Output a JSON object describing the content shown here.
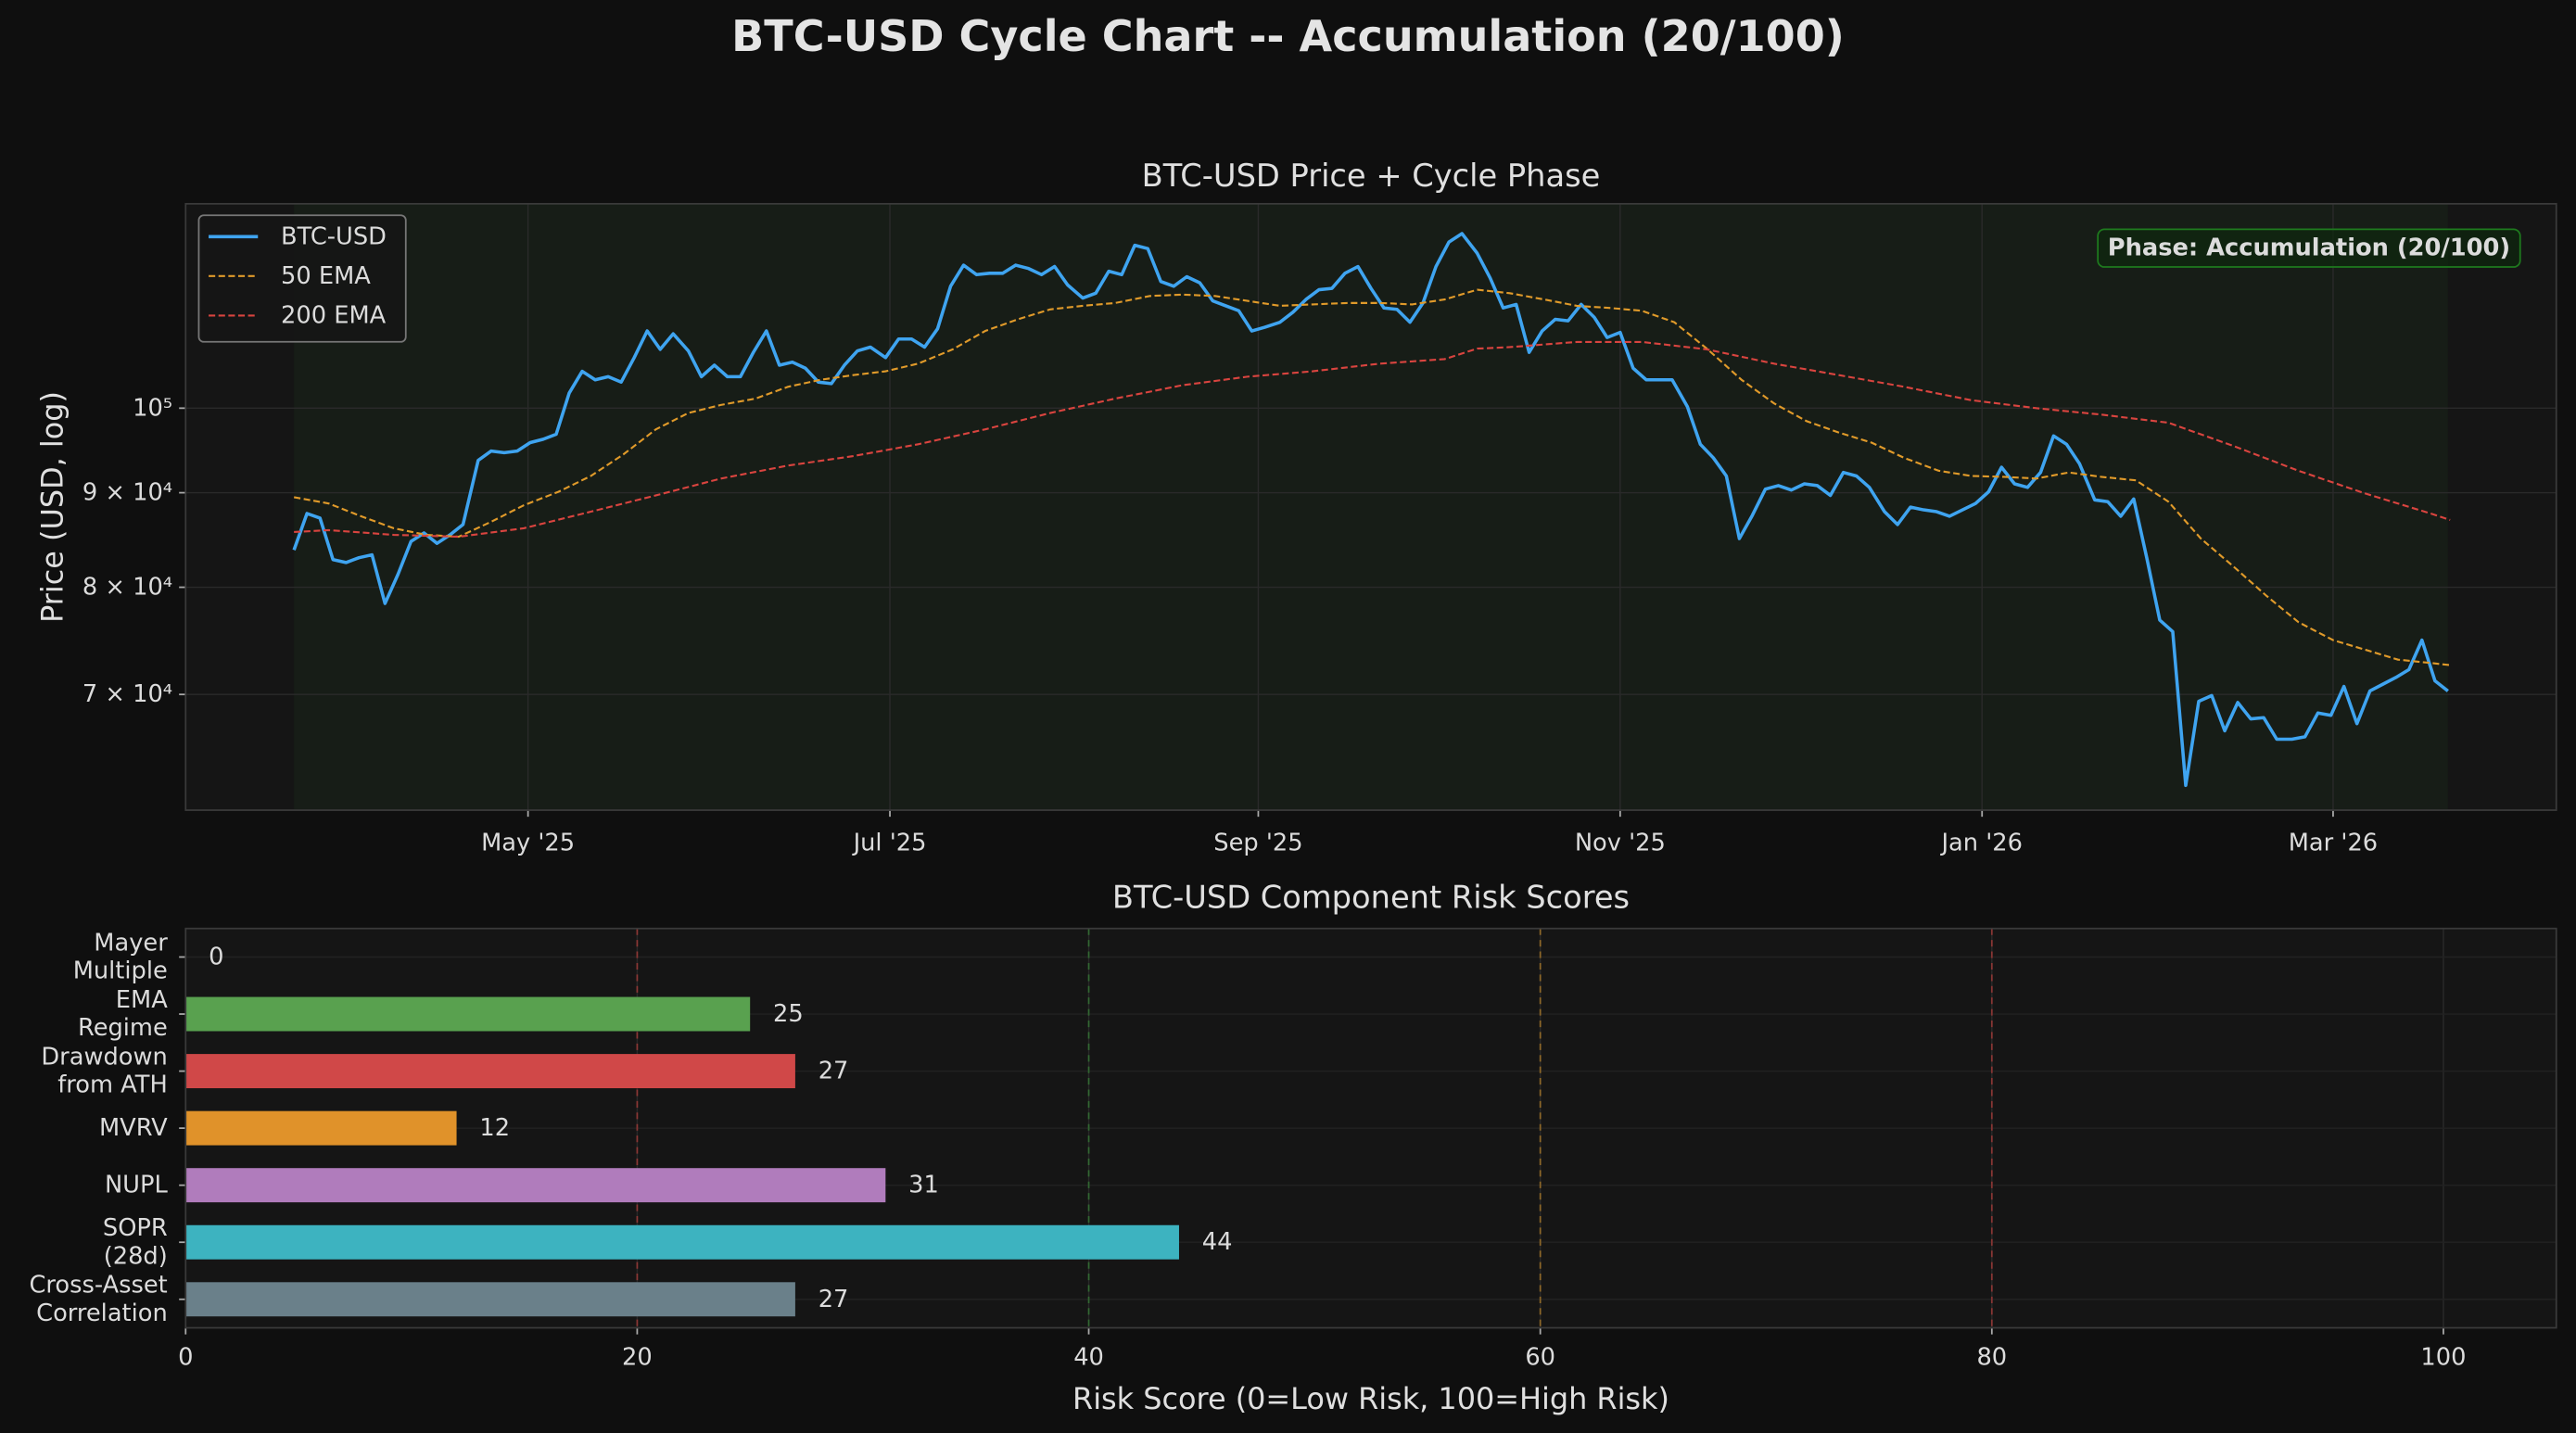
{
  "title": "BTC-USD Cycle Chart -- Accumulation (20/100)",
  "chart_data": [
    {
      "type": "line",
      "title": "BTC-USD Price + Cycle Phase",
      "ylabel": "Price (USD, log)",
      "log_y": true,
      "grid": true,
      "legend": "upper left",
      "phase_color": "#2e7d32",
      "annotation": {
        "text": "Phase: Accumulation (20/100)",
        "color": "#1e7a1e"
      },
      "xlim": [
        2025.171,
        2026.265
      ],
      "xticks": [
        {
          "value": 2025.329,
          "label": "May '25"
        },
        {
          "value": 2025.496,
          "label": "Jul '25"
        },
        {
          "value": 2025.666,
          "label": "Sep '25"
        },
        {
          "value": 2025.833,
          "label": "Nov '25"
        },
        {
          "value": 2026.0,
          "label": "Jan '26"
        },
        {
          "value": 2026.162,
          "label": "Mar '26"
        }
      ],
      "ylim": [
        60600,
        129000
      ],
      "yticks": [
        {
          "value": 70000,
          "label": "7 × 10⁴"
        },
        {
          "value": 80000,
          "label": "8 × 10⁴"
        },
        {
          "value": 90000,
          "label": "9 × 10⁴"
        },
        {
          "value": 100000,
          "label": "10⁵"
        }
      ],
      "series": [
        {
          "name": "BTC-USD",
          "color": "#3fa4f0",
          "linestyle": "solid",
          "x": [
            2025.221,
            2025.227,
            2025.233,
            2025.239,
            2025.245,
            2025.251,
            2025.257,
            2025.263,
            2025.269,
            2025.275,
            2025.281,
            2025.287,
            2025.293,
            2025.299,
            2025.306,
            2025.312,
            2025.318,
            2025.324,
            2025.33,
            2025.336,
            2025.342,
            2025.348,
            2025.354,
            2025.36,
            2025.366,
            2025.372,
            2025.378,
            2025.384,
            2025.39,
            2025.396,
            2025.403,
            2025.409,
            2025.415,
            2025.421,
            2025.427,
            2025.433,
            2025.439,
            2025.445,
            2025.451,
            2025.457,
            2025.463,
            2025.469,
            2025.475,
            2025.481,
            2025.487,
            2025.494,
            2025.5,
            2025.506,
            2025.512,
            2025.518,
            2025.524,
            2025.53,
            2025.536,
            2025.542,
            2025.548,
            2025.554,
            2025.56,
            2025.566,
            2025.572,
            2025.578,
            2025.585,
            2025.591,
            2025.597,
            2025.603,
            2025.609,
            2025.615,
            2025.621,
            2025.627,
            2025.633,
            2025.639,
            2025.645,
            2025.651,
            2025.657,
            2025.663,
            2025.669,
            2025.676,
            2025.682,
            2025.688,
            2025.694,
            2025.7,
            2025.706,
            2025.712,
            2025.718,
            2025.724,
            2025.73,
            2025.736,
            2025.742,
            2025.748,
            2025.754,
            2025.76,
            2025.767,
            2025.773,
            2025.779,
            2025.785,
            2025.791,
            2025.797,
            2025.803,
            2025.809,
            2025.815,
            2025.821,
            2025.827,
            2025.833,
            2025.839,
            2025.845,
            2025.851,
            2025.857,
            2025.864,
            2025.87,
            2025.876,
            2025.882,
            2025.888,
            2025.894,
            2025.9,
            2025.906,
            2025.912,
            2025.918,
            2025.924,
            2025.93,
            2025.936,
            2025.942,
            2025.948,
            2025.955,
            2025.961,
            2025.967,
            2025.973,
            2025.979,
            2025.985,
            2025.991,
            2025.997,
            2026.003,
            2026.009,
            2026.015,
            2026.021,
            2026.027,
            2026.033,
            2026.039,
            2026.045,
            2026.052,
            2026.058,
            2026.064,
            2026.07,
            2026.076,
            2026.082,
            2026.088,
            2026.094,
            2026.1,
            2026.106,
            2026.112,
            2026.118,
            2026.124,
            2026.13,
            2026.136,
            2026.143,
            2026.149,
            2026.155,
            2026.161,
            2026.167,
            2026.173,
            2026.179,
            2026.185,
            2026.191,
            2026.197,
            2026.203,
            2026.209,
            2026.215
          ],
          "values": [
            83800,
            87700,
            87200,
            82800,
            82500,
            83000,
            83300,
            78400,
            81300,
            84700,
            85600,
            84500,
            85400,
            86500,
            93700,
            94800,
            94600,
            94800,
            95800,
            96200,
            96800,
            101900,
            104700,
            103600,
            104000,
            103300,
            106500,
            110100,
            107600,
            109700,
            107400,
            104000,
            105500,
            104000,
            104000,
            107200,
            110100,
            105500,
            105900,
            105100,
            103300,
            103100,
            105500,
            107400,
            107900,
            106500,
            109000,
            109000,
            107900,
            110400,
            116400,
            119500,
            118100,
            118300,
            118300,
            119500,
            119000,
            118100,
            119300,
            116600,
            114700,
            115400,
            118600,
            118100,
            122500,
            122000,
            117100,
            116400,
            117800,
            116900,
            114300,
            113600,
            112900,
            110100,
            110600,
            111300,
            112700,
            114500,
            115900,
            116100,
            118300,
            119300,
            116100,
            113300,
            113100,
            111300,
            114000,
            119300,
            123000,
            124300,
            121300,
            117600,
            113300,
            113800,
            107200,
            110100,
            111700,
            111500,
            113800,
            112000,
            109200,
            109900,
            105100,
            103600,
            103600,
            103600,
            100200,
            95600,
            94000,
            91900,
            85000,
            87500,
            90400,
            90800,
            90300,
            91000,
            90800,
            89700,
            92300,
            91900,
            90600,
            87900,
            86500,
            88400,
            88100,
            87900,
            87400,
            88100,
            88800,
            90100,
            92900,
            91000,
            90600,
            92300,
            96600,
            95600,
            93300,
            89200,
            89000,
            87400,
            89300,
            83000,
            76800,
            75700,
            62500,
            69400,
            69900,
            66900,
            69300,
            67900,
            68000,
            66200,
            66200,
            66400,
            68400,
            68200,
            70700,
            67500,
            70300,
            70900,
            71500,
            72200,
            74900,
            71200,
            70300
          ]
        },
        {
          "name": "50 EMA",
          "color": "#e09a2a",
          "linestyle": "dashed",
          "x": [
            2025.221,
            2025.237,
            2025.252,
            2025.267,
            2025.282,
            2025.297,
            2025.312,
            2025.327,
            2025.343,
            2025.358,
            2025.373,
            2025.388,
            2025.403,
            2025.418,
            2025.434,
            2025.449,
            2025.464,
            2025.479,
            2025.494,
            2025.509,
            2025.525,
            2025.54,
            2025.555,
            2025.57,
            2025.585,
            2025.6,
            2025.616,
            2025.631,
            2025.646,
            2025.661,
            2025.676,
            2025.691,
            2025.707,
            2025.722,
            2025.737,
            2025.752,
            2025.767,
            2025.782,
            2025.798,
            2025.813,
            2025.828,
            2025.843,
            2025.858,
            2025.873,
            2025.889,
            2025.904,
            2025.919,
            2025.934,
            2025.949,
            2025.964,
            2025.98,
            2025.995,
            2026.01,
            2026.025,
            2026.04,
            2026.055,
            2026.071,
            2026.086,
            2026.101,
            2026.116,
            2026.131,
            2026.146,
            2026.162,
            2026.177,
            2026.192,
            2026.207,
            2026.216
          ],
          "values": [
            89500,
            88800,
            87400,
            86100,
            85400,
            85200,
            86800,
            88600,
            90100,
            91900,
            94400,
            97400,
            99400,
            100400,
            101200,
            102700,
            103600,
            104200,
            104700,
            105700,
            107600,
            110100,
            111700,
            113100,
            113600,
            114000,
            115000,
            115200,
            115000,
            114300,
            113600,
            113800,
            114000,
            114000,
            113800,
            114500,
            115900,
            115400,
            114500,
            113600,
            113300,
            112900,
            111300,
            107700,
            103600,
            100600,
            98400,
            97000,
            95800,
            94000,
            92500,
            91900,
            91800,
            91600,
            92300,
            91800,
            91400,
            89000,
            85000,
            82100,
            79200,
            76600,
            74900,
            74000,
            73100,
            72800,
            72600
          ]
        },
        {
          "name": "200 EMA",
          "color": "#d9443f",
          "linestyle": "dashed",
          "x": [
            2025.221,
            2025.237,
            2025.267,
            2025.297,
            2025.327,
            2025.358,
            2025.388,
            2025.418,
            2025.449,
            2025.479,
            2025.509,
            2025.54,
            2025.57,
            2025.6,
            2025.631,
            2025.661,
            2025.691,
            2025.722,
            2025.752,
            2025.767,
            2025.782,
            2025.813,
            2025.843,
            2025.873,
            2025.904,
            2025.934,
            2025.964,
            2025.995,
            2026.025,
            2026.055,
            2026.086,
            2026.116,
            2026.146,
            2026.177,
            2026.207,
            2026.216
          ],
          "values": [
            85700,
            85900,
            85400,
            85200,
            86100,
            87900,
            89700,
            91600,
            93100,
            94200,
            95600,
            97400,
            99400,
            101200,
            102900,
            104000,
            104700,
            105700,
            106300,
            107700,
            107900,
            108600,
            108600,
            107600,
            105700,
            104200,
            102700,
            101000,
            100000,
            99200,
            98200,
            95400,
            92500,
            89900,
            87700,
            87000
          ]
        }
      ]
    },
    {
      "type": "barh",
      "title": "BTC-USD Component Risk Scores",
      "xlabel": "Risk Score (0=Low Risk, 100=High Risk)",
      "grid": true,
      "categories": [
        "Mayer\nMultiple",
        "EMA\nRegime",
        "Drawdown\nfrom ATH",
        "MVRV",
        "NUPL",
        "SOPR\n(28d)",
        "Cross-Asset\nCorrelation"
      ],
      "values": [
        0,
        25,
        27,
        12,
        31,
        44,
        27
      ],
      "colors": [
        "#888888",
        "#59a14f",
        "#d04848",
        "#e0922a",
        "#b07cbc",
        "#3db3c0",
        "#6a808a"
      ],
      "xlim": [
        0,
        105
      ],
      "xticks": [
        0,
        20,
        40,
        60,
        80,
        100
      ],
      "thresholds": [
        {
          "value": 20,
          "color": "#d9443f"
        },
        {
          "value": 40,
          "color": "#3a9a3a"
        },
        {
          "value": 60,
          "color": "#e09a2a"
        },
        {
          "value": 80,
          "color": "#d9443f"
        }
      ]
    }
  ]
}
